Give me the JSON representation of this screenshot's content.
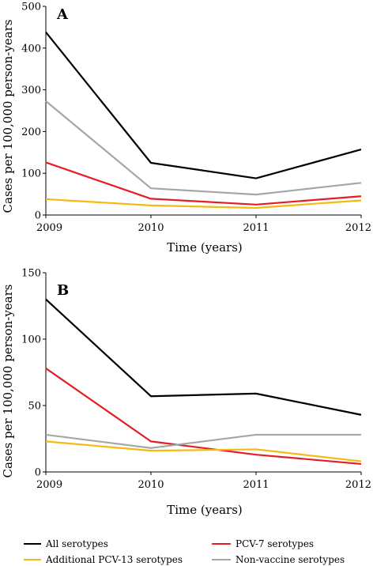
{
  "chart_data": [
    {
      "type": "line",
      "title": "A",
      "xlabel": "Time (years)",
      "ylabel": "Cases per 100,000 person-years",
      "x": [
        "2009",
        "2010",
        "2011",
        "2012"
      ],
      "ylim": [
        0,
        500
      ],
      "yticks": [
        "0",
        "100",
        "200",
        "300",
        "400",
        "500"
      ],
      "grid": false,
      "series": [
        {
          "name": "All serotypes",
          "color": "#000000",
          "values": [
            438,
            125,
            88,
            157
          ]
        },
        {
          "name": "Non-vaccine serotypes",
          "color": "#a6a6a6",
          "values": [
            273,
            64,
            49,
            77
          ]
        },
        {
          "name": "PCV-7 serotypes",
          "color": "#e31e24",
          "values": [
            126,
            39,
            25,
            45
          ]
        },
        {
          "name": "Additional PCV-13 serotypes",
          "color": "#f5b90f",
          "values": [
            38,
            23,
            17,
            35
          ]
        }
      ]
    },
    {
      "type": "line",
      "title": "B",
      "xlabel": "Time (years)",
      "ylabel": "Cases per 100,000 person-years",
      "x": [
        "2009",
        "2010",
        "2011",
        "2012"
      ],
      "ylim": [
        0,
        150
      ],
      "yticks": [
        "0",
        "50",
        "100",
        "150"
      ],
      "grid": false,
      "series": [
        {
          "name": "All serotypes",
          "color": "#000000",
          "values": [
            130,
            57,
            59,
            43
          ]
        },
        {
          "name": "PCV-7 serotypes",
          "color": "#e31e24",
          "values": [
            78,
            23,
            13,
            6
          ]
        },
        {
          "name": "Non-vaccine serotypes",
          "color": "#a6a6a6",
          "values": [
            28,
            18,
            28,
            28
          ]
        },
        {
          "name": "Additional PCV-13 serotypes",
          "color": "#f5b90f",
          "values": [
            23,
            16,
            17,
            8
          ]
        }
      ]
    }
  ],
  "legend": {
    "placement": "bottom",
    "items": [
      {
        "label": "All serotypes",
        "color": "#000000"
      },
      {
        "label": "PCV-7 serotypes",
        "color": "#e31e24"
      },
      {
        "label": "Additional PCV-13 serotypes",
        "color": "#f5b90f"
      },
      {
        "label": "Non-vaccine serotypes",
        "color": "#a6a6a6"
      }
    ]
  }
}
